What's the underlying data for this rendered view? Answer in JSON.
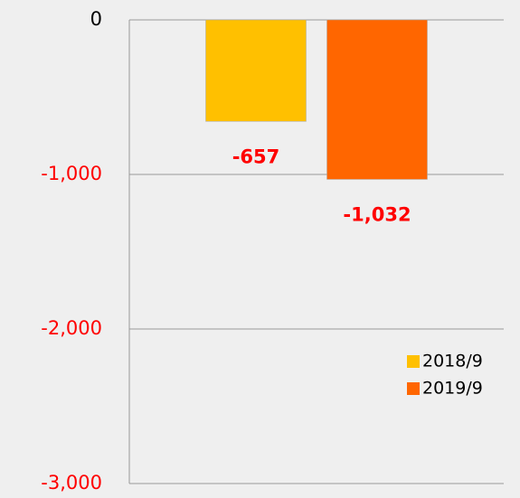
{
  "chart_data": {
    "type": "bar",
    "categories": [
      null
    ],
    "series": [
      {
        "name": "2018/9",
        "color": "#ffc000",
        "values": [
          -657
        ],
        "value_labels": [
          "-657"
        ]
      },
      {
        "name": "2019/9",
        "color": "#ff6600",
        "values": [
          -1032
        ],
        "value_labels": [
          "-1,032"
        ]
      }
    ],
    "ylim": [
      -3000,
      0
    ],
    "yticks": [
      0,
      {
        "value": -1000,
        "label": "-1,000"
      },
      {
        "value": -2000,
        "label": "-2,000"
      },
      {
        "value": -3000,
        "label": "-3,000"
      }
    ],
    "grid": true,
    "legend": "right",
    "negative_color": "#ff0000",
    "value_label_color": "#ff0000"
  }
}
